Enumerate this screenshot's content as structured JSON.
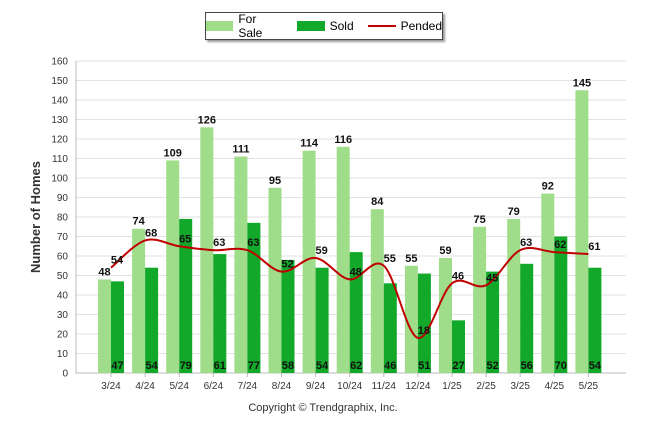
{
  "legend": {
    "for_sale": "For Sale",
    "sold": "Sold",
    "pended": "Pended"
  },
  "copyright": "Copyright © Trendgraphix, Inc.",
  "colors": {
    "for_sale": "#9fdd8a",
    "sold": "#12a82a",
    "pended": "#c00000",
    "grid": "#e2e2e2"
  },
  "chart_data": {
    "type": "bar",
    "ylabel": "Number of Homes",
    "xlabel": "",
    "ylim": [
      0,
      160
    ],
    "yticks": [
      0,
      10,
      20,
      30,
      40,
      50,
      60,
      70,
      80,
      90,
      100,
      110,
      120,
      130,
      140,
      150,
      160
    ],
    "grid": true,
    "legend_position": "top-center",
    "categories": [
      "3/24",
      "4/24",
      "5/24",
      "6/24",
      "7/24",
      "8/24",
      "9/24",
      "10/24",
      "11/24",
      "12/24",
      "1/25",
      "2/25",
      "3/25",
      "4/25",
      "5/25"
    ],
    "series": [
      {
        "name": "For Sale",
        "type": "bar",
        "values": [
          48,
          74,
          109,
          126,
          111,
          95,
          114,
          116,
          84,
          55,
          59,
          75,
          79,
          92,
          145
        ]
      },
      {
        "name": "Sold",
        "type": "bar",
        "values": [
          47,
          54,
          79,
          61,
          77,
          58,
          54,
          62,
          46,
          51,
          27,
          52,
          56,
          70,
          54
        ]
      },
      {
        "name": "Pended",
        "type": "line",
        "values": [
          54,
          68,
          65,
          63,
          63,
          52,
          59,
          48,
          55,
          18,
          46,
          45,
          63,
          62,
          61
        ]
      }
    ]
  }
}
